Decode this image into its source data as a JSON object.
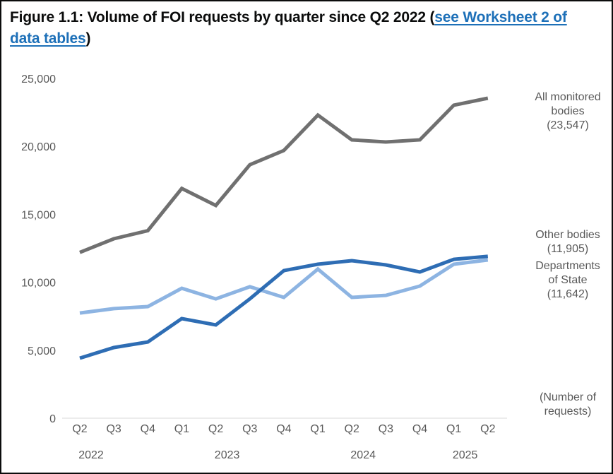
{
  "figure": {
    "title_prefix": "Figure 1.1: Volume of FOI requests by quarter since Q2 2022 (",
    "title_link": "see Worksheet 2 of data tables",
    "title_suffix": ")"
  },
  "chart_data": {
    "type": "line",
    "title": "Figure 1.1: Volume of FOI requests by quarter since Q2 2022",
    "xlabel": "",
    "ylabel": "(Number of requests)",
    "ylim": [
      0,
      25000
    ],
    "yticks": [
      0,
      5000,
      10000,
      15000,
      20000,
      25000
    ],
    "ytick_labels": [
      "0",
      "5,000",
      "10,000",
      "15,000",
      "20,000",
      "25,000"
    ],
    "grid": false,
    "categories": [
      "Q2",
      "Q3",
      "Q4",
      "Q1",
      "Q2",
      "Q3",
      "Q4",
      "Q1",
      "Q2",
      "Q3",
      "Q4",
      "Q1",
      "Q2"
    ],
    "year_labels": [
      {
        "label": "2022",
        "index": 0
      },
      {
        "label": "2023",
        "index": 4
      },
      {
        "label": "2024",
        "index": 8
      },
      {
        "label": "2025",
        "index": 11
      }
    ],
    "legend_placement": "right (direct labels at line ends)",
    "series": [
      {
        "name": "All monitored bodies",
        "label_lines": [
          "All monitored",
          "bodies",
          "(23,547)"
        ],
        "color": "#707070",
        "values": [
          12200,
          13200,
          13800,
          16900,
          15650,
          18650,
          19700,
          22300,
          20480,
          20320,
          20480,
          23030,
          23547
        ]
      },
      {
        "name": "Other bodies",
        "label_lines": [
          "Other bodies",
          "(11,905)"
        ],
        "color": "#2e6db4",
        "values": [
          4420,
          5200,
          5610,
          7330,
          6860,
          8780,
          10860,
          11330,
          11590,
          11280,
          10760,
          11690,
          11905
        ]
      },
      {
        "name": "Departments of State",
        "label_lines": [
          "Departments",
          "of State",
          "(11,642)"
        ],
        "color": "#8db4e2",
        "values": [
          7740,
          8060,
          8210,
          9560,
          8780,
          9670,
          8890,
          10970,
          8890,
          9040,
          9720,
          11330,
          11642
        ]
      }
    ],
    "unit_note_lines": [
      "(Number of",
      "requests)"
    ]
  }
}
